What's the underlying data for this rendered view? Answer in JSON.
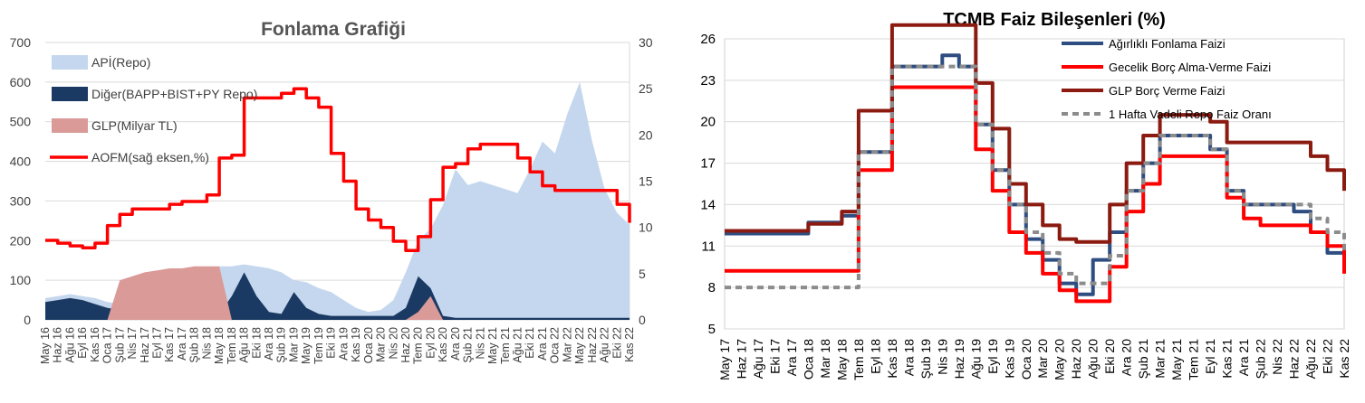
{
  "chart_data": [
    {
      "type": "area",
      "title": "Fonlama Grafiği",
      "ylim_left": [
        0,
        700
      ],
      "ylim_right": [
        0,
        30
      ],
      "yticks_left": [
        "0",
        "100",
        "200",
        "300",
        "400",
        "500",
        "600",
        "700"
      ],
      "yticks_right": [
        "0",
        "5",
        "10",
        "15",
        "20",
        "25",
        "30"
      ],
      "categories": [
        "May 16",
        "Haz 16",
        "Ağu 16",
        "Eyl 16",
        "Kas 16",
        "Oca 17",
        "Şub 17",
        "Nis 17",
        "Haz 17",
        "Eyl 17",
        "Kas 17",
        "Ara 17",
        "Şub 18",
        "Nis 18",
        "May 18",
        "Tem 18",
        "Ağu 18",
        "Eki 18",
        "Ara 18",
        "Şub 19",
        "Mar 19",
        "May 19",
        "Tem 19",
        "Eki 19",
        "Ara 19",
        "Kas 19",
        "Oca 20",
        "Mar 20",
        "Nis 20",
        "Haz 20",
        "Tem 20",
        "Eyl 20",
        "Kas 20",
        "Ara 20",
        "Şub 21",
        "Nis 21",
        "May 21",
        "Tem 21",
        "Ağu 21",
        "Eki 21",
        "Ara 21",
        "Oca 22",
        "Mar 22",
        "May 22",
        "Haz 22",
        "Ağu 22",
        "Eki 22",
        "Kas 22"
      ],
      "series": [
        {
          "name": "APİ(Repo)",
          "color": "#c5d7ee",
          "axis": "left",
          "values": [
            55,
            60,
            65,
            60,
            55,
            45,
            40,
            55,
            75,
            95,
            110,
            120,
            125,
            130,
            135,
            135,
            140,
            135,
            130,
            120,
            100,
            95,
            80,
            70,
            50,
            30,
            20,
            25,
            50,
            120,
            200,
            230,
            290,
            380,
            340,
            350,
            340,
            330,
            320,
            380,
            450,
            420,
            520,
            600,
            450,
            330,
            270,
            240
          ]
        },
        {
          "name": "Diğer(BAPP+BIST+PY Repo)",
          "color": "#1b3a63",
          "axis": "left",
          "values": [
            45,
            50,
            55,
            50,
            40,
            30,
            25,
            25,
            20,
            15,
            10,
            10,
            10,
            10,
            15,
            60,
            120,
            60,
            20,
            15,
            70,
            30,
            15,
            10,
            10,
            10,
            10,
            10,
            10,
            30,
            110,
            80,
            10,
            5,
            5,
            5,
            5,
            5,
            5,
            5,
            5,
            5,
            5,
            5,
            5,
            5,
            5,
            5
          ]
        },
        {
          "name": "GLP(Milyar TL)",
          "color": "#d99a98",
          "axis": "left",
          "values": [
            0,
            0,
            0,
            0,
            0,
            0,
            100,
            110,
            120,
            125,
            130,
            130,
            135,
            135,
            135,
            0,
            0,
            0,
            0,
            0,
            0,
            0,
            0,
            0,
            0,
            0,
            0,
            0,
            0,
            0,
            20,
            60,
            0,
            0,
            0,
            0,
            0,
            0,
            0,
            0,
            0,
            0,
            0,
            0,
            0,
            0,
            0,
            0
          ]
        },
        {
          "name": "AOFM(sağ eksen,%)",
          "color": "#ff0000",
          "axis": "right",
          "values": [
            8.6,
            8.3,
            8.0,
            7.8,
            8.3,
            10.2,
            11.4,
            12.0,
            12.0,
            12.0,
            12.5,
            12.8,
            12.8,
            13.5,
            17.5,
            17.8,
            24.0,
            24.0,
            24.0,
            24.5,
            25.0,
            24.0,
            23.0,
            18.0,
            15.0,
            12.0,
            10.8,
            10.0,
            8.5,
            7.5,
            9.0,
            13.0,
            16.5,
            16.9,
            18.5,
            19.0,
            19.0,
            19.0,
            17.5,
            16.0,
            14.5,
            14.0,
            14.0,
            14.0,
            14.0,
            14.0,
            12.5,
            10.5
          ]
        }
      ]
    },
    {
      "type": "line",
      "title": "TCMB Faiz Bileşenleri (%)",
      "ylim": [
        5,
        26
      ],
      "yticks": [
        "5",
        "8",
        "11",
        "14",
        "17",
        "20",
        "23",
        "26"
      ],
      "categories": [
        "May 17",
        "Haz 17",
        "Ağu 17",
        "Eki 17",
        "Ara 17",
        "Oca 18",
        "Mar 18",
        "May 18",
        "Tem 18",
        "Eyl 18",
        "Kas 18",
        "Ara 18",
        "Şub 19",
        "Nis 19",
        "Haz 19",
        "Ağu 19",
        "Eyl 19",
        "Kas 19",
        "Oca 20",
        "Mar 20",
        "May 20",
        "Haz 20",
        "Ağu 20",
        "Eki 20",
        "Ara 20",
        "Şub 21",
        "Mar 21",
        "May 21",
        "Tem 21",
        "Eyl 21",
        "Kas 21",
        "Ara 21",
        "Şub 22",
        "Nis 22",
        "Haz 22",
        "Ağu 22",
        "Eki 22",
        "Kas 22"
      ],
      "series": [
        {
          "name": "Ağırlıklı  Fonlama Faizi",
          "color": "#2e4d80",
          "dash": "",
          "values": [
            11.9,
            11.9,
            11.9,
            11.9,
            11.9,
            12.7,
            12.7,
            13.2,
            17.8,
            17.8,
            24.0,
            24.0,
            24.0,
            24.8,
            24.0,
            19.8,
            16.5,
            14.0,
            11.5,
            10.0,
            8.3,
            7.5,
            10.0,
            12.0,
            15.0,
            17.0,
            19.0,
            19.0,
            19.0,
            18.0,
            15.0,
            14.0,
            14.0,
            14.0,
            13.5,
            12.0,
            10.5,
            10.5
          ]
        },
        {
          "name": "Gecelik Borç Alma-Verme Faizi",
          "color": "#ff0000",
          "dash": "",
          "values": [
            9.2,
            9.2,
            9.2,
            9.2,
            9.2,
            9.2,
            9.2,
            9.2,
            16.5,
            16.5,
            22.5,
            22.5,
            22.5,
            22.5,
            22.5,
            18.0,
            15.0,
            12.0,
            10.5,
            9.0,
            7.8,
            7.0,
            7.0,
            9.5,
            13.5,
            15.5,
            17.5,
            17.5,
            17.5,
            17.5,
            14.5,
            13.0,
            12.5,
            12.5,
            12.5,
            12.0,
            11.0,
            9.0
          ]
        },
        {
          "name": "GLP Borç Verme Faizi",
          "color": "#8b1a10",
          "dash": "",
          "values": [
            12.1,
            12.1,
            12.1,
            12.1,
            12.1,
            12.6,
            12.6,
            13.5,
            20.8,
            20.8,
            27.0,
            27.0,
            27.0,
            27.0,
            27.0,
            22.8,
            19.5,
            15.5,
            14.0,
            12.5,
            11.5,
            11.3,
            11.3,
            14.0,
            17.0,
            19.0,
            20.5,
            20.5,
            20.5,
            20.0,
            18.5,
            18.5,
            18.5,
            18.5,
            18.5,
            17.5,
            16.5,
            15.0
          ]
        },
        {
          "name": "1 Hafta Vadeli Repo Faiz Oranı",
          "color": "#8c8c8c",
          "dash": "7,5",
          "values": [
            8.0,
            8.0,
            8.0,
            8.0,
            8.0,
            8.0,
            8.0,
            8.0,
            17.8,
            17.8,
            24.0,
            24.0,
            24.0,
            24.0,
            24.0,
            19.8,
            16.5,
            14.0,
            12.0,
            10.5,
            9.0,
            8.3,
            8.3,
            10.3,
            15.0,
            17.0,
            19.0,
            19.0,
            19.0,
            18.0,
            15.0,
            14.0,
            14.0,
            14.0,
            14.0,
            13.0,
            12.0,
            10.5
          ]
        }
      ]
    }
  ]
}
